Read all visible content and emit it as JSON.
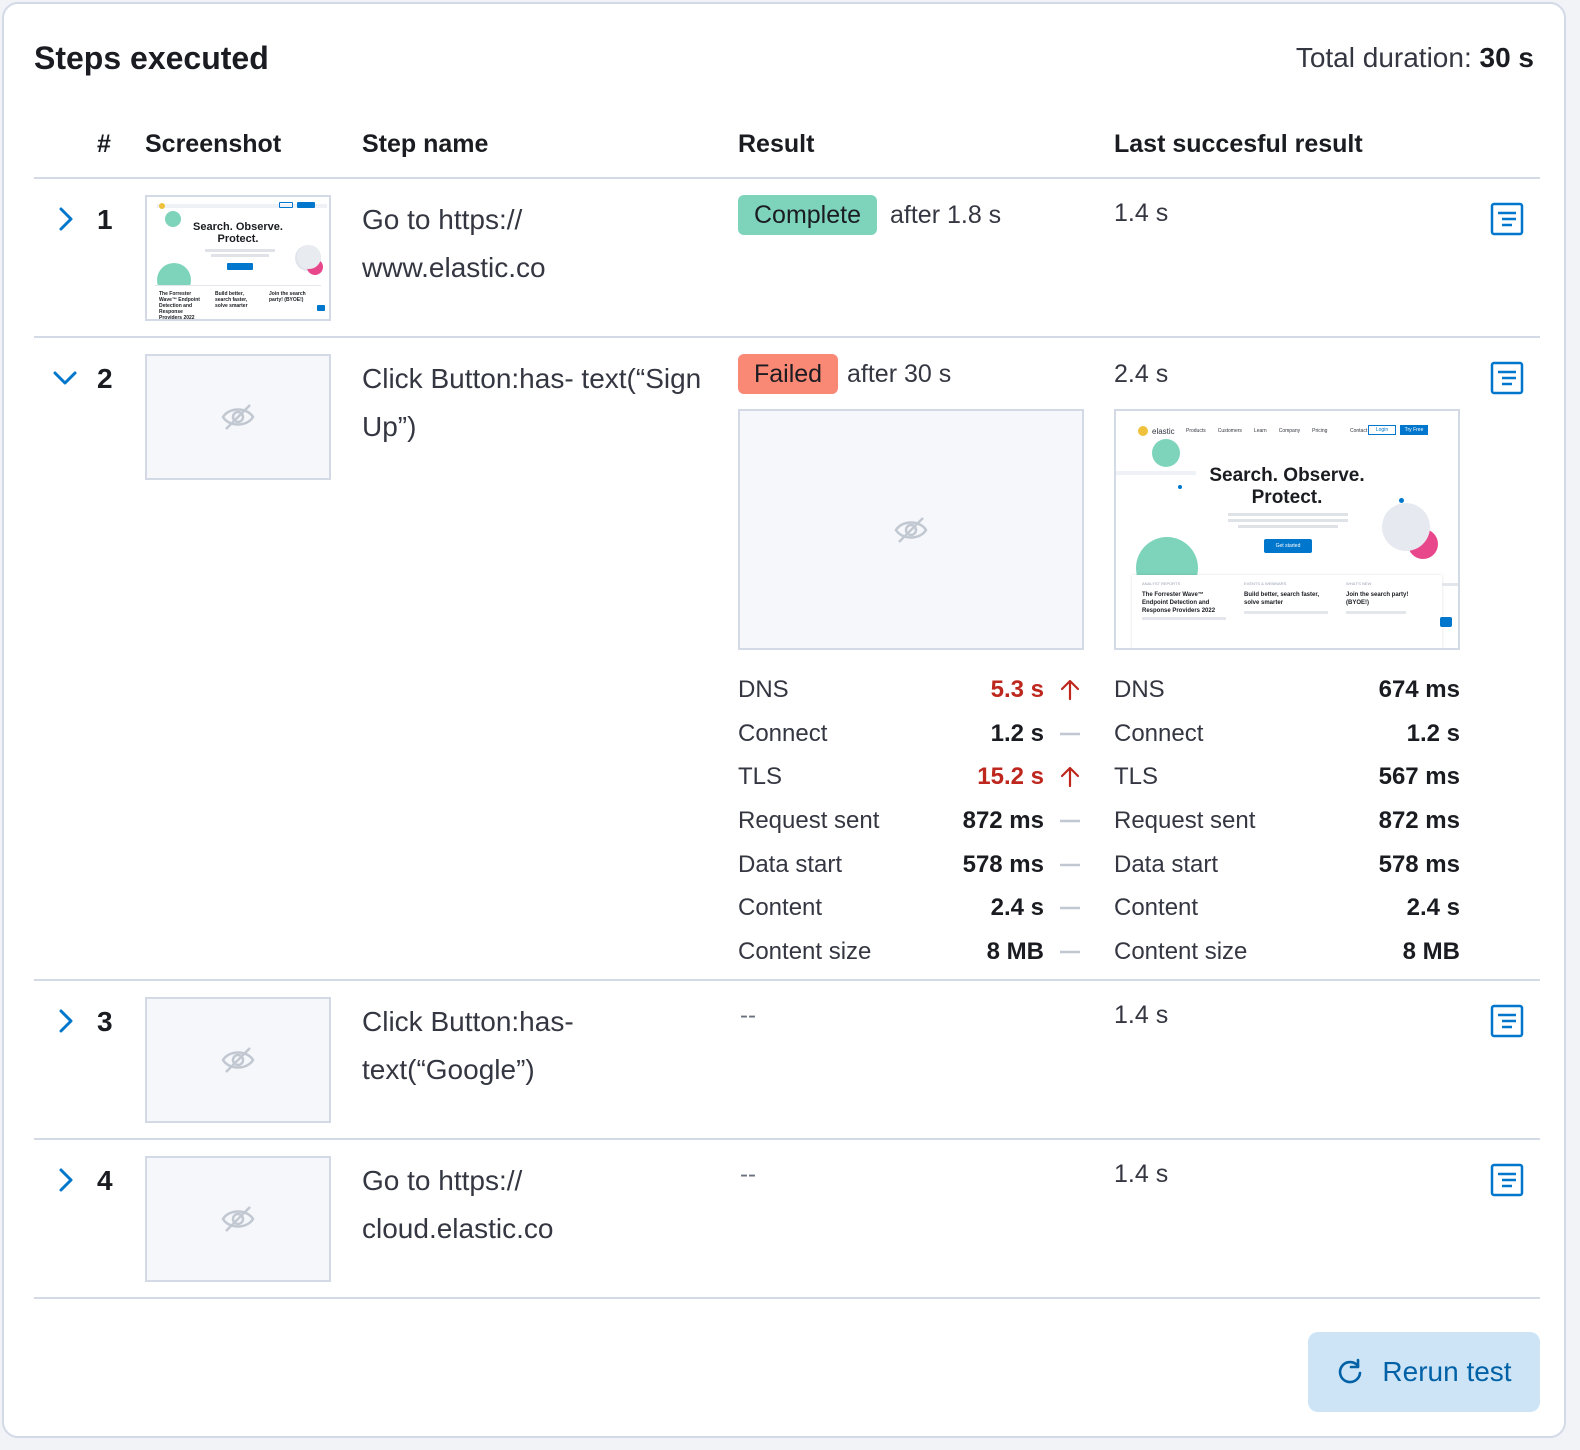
{
  "header": {
    "title": "Steps executed",
    "total_label": "Total duration:",
    "total_value": "30 s"
  },
  "columns": {
    "num": "#",
    "screenshot": "Screenshot",
    "step_name": "Step name",
    "result": "Result",
    "last": "Last succesful result"
  },
  "steps": [
    {
      "num": "1",
      "name": "Go to https:// www.elastic.co",
      "status": "Complete",
      "after": "after 1.8 s",
      "last": "1.4 s"
    },
    {
      "num": "2",
      "name": "Click Button:has- text(“Sign Up”)",
      "status": "Failed",
      "after": "after 30 s",
      "last": "2.4 s"
    },
    {
      "num": "3",
      "name": "Click Button:has- text(“Google”)",
      "result": "--",
      "last": "1.4 s"
    },
    {
      "num": "4",
      "name": "Go to https:// cloud.elastic.co",
      "result": "--",
      "last": "1.4 s"
    }
  ],
  "site_preview": {
    "headline1": "Search. Observe.",
    "headline2": "Protect.",
    "logo": "elastic",
    "nav": [
      "Products",
      "Customers",
      "Learn",
      "Company",
      "Pricing"
    ],
    "nav_right": [
      "Contact",
      "Login",
      "Try Free"
    ],
    "cta": "Get started",
    "cards": [
      {
        "kicker": "ANALYST REPORTS",
        "title": "The Forrester Wave™ Endpoint Detection and Response Providers 2022"
      },
      {
        "kicker": "EVENTS & WEBINARS",
        "title": "Build better, search faster, solve smarter"
      },
      {
        "kicker": "WHAT'S NEW",
        "title": "Join the search party! (BYOE!)"
      }
    ]
  },
  "metrics_current": [
    {
      "label": "DNS",
      "value": "5.3 s",
      "trend": "up"
    },
    {
      "label": "Connect",
      "value": "1.2 s",
      "trend": "same"
    },
    {
      "label": "TLS",
      "value": "15.2 s",
      "trend": "up"
    },
    {
      "label": "Request sent",
      "value": "872 ms",
      "trend": "same"
    },
    {
      "label": "Data start",
      "value": "578 ms",
      "trend": "same"
    },
    {
      "label": "Content",
      "value": "2.4 s",
      "trend": "same"
    },
    {
      "label": "Content size",
      "value": "8 MB",
      "trend": "same"
    }
  ],
  "metrics_last": [
    {
      "label": "DNS",
      "value": "674 ms"
    },
    {
      "label": "Connect",
      "value": "1.2 s"
    },
    {
      "label": "TLS",
      "value": "567 ms"
    },
    {
      "label": "Request sent",
      "value": "872 ms"
    },
    {
      "label": "Data start",
      "value": "578 ms"
    },
    {
      "label": "Content",
      "value": "2.4 s"
    },
    {
      "label": "Content size",
      "value": "8 MB"
    }
  ],
  "actions": {
    "rerun": "Rerun test"
  },
  "colors": {
    "accent": "#0077cc",
    "complete": "#7dd4bb",
    "failed": "#f98875",
    "danger": "#bd271e"
  }
}
